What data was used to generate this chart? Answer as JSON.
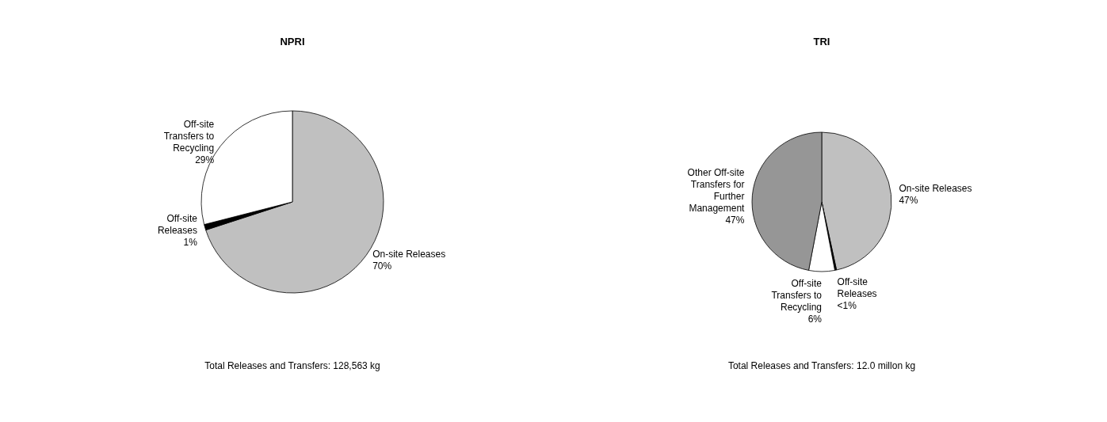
{
  "chart_data": [
    {
      "type": "pie",
      "title": "NPRI",
      "categories": [
        "On-site Releases",
        "Off-site Releases",
        "Off-site Transfers to Recycling"
      ],
      "values": [
        70,
        1,
        29
      ],
      "colors": [
        "#c0c0c0",
        "#000000",
        "#ffffff"
      ],
      "value_labels": [
        "70%",
        "1%",
        "29%"
      ],
      "annotations": [
        "Total Releases and Transfers: 128,563 kg"
      ],
      "legend": false
    },
    {
      "type": "pie",
      "title": "TRI",
      "categories": [
        "On-site Releases",
        "Off-site Releases",
        "Off-site Transfers to Recycling",
        "Other Off-site Transfers for Further Management"
      ],
      "values": [
        46.6,
        0.4,
        6,
        47
      ],
      "colors": [
        "#c0c0c0",
        "#000000",
        "#ffffff",
        "#969696"
      ],
      "value_labels": [
        "47%",
        "<1%",
        "6%",
        "47%"
      ],
      "annotations": [
        "Total Releases and Transfers: 12.0 millon kg"
      ],
      "legend": false
    }
  ]
}
